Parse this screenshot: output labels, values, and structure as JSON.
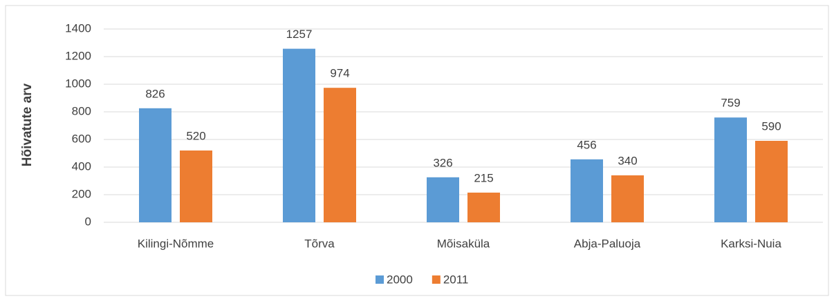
{
  "chart_data": {
    "type": "bar",
    "y_label": "Hõivatute arv",
    "categories": [
      "Kilingi-Nõmme",
      "Tõrva",
      "Mõisaküla",
      "Abja-Paluoja",
      "Karksi-Nuia"
    ],
    "series": [
      {
        "name": "2000",
        "color": "#5b9bd5",
        "values": [
          826,
          1257,
          326,
          456,
          759
        ]
      },
      {
        "name": "2011",
        "color": "#ed7d31",
        "values": [
          520,
          974,
          215,
          340,
          590
        ]
      }
    ],
    "ylim": [
      0,
      1400
    ],
    "yticks": [
      0,
      200,
      400,
      600,
      800,
      1000,
      1200,
      1400
    ],
    "grid": true,
    "legend": "bottom"
  }
}
